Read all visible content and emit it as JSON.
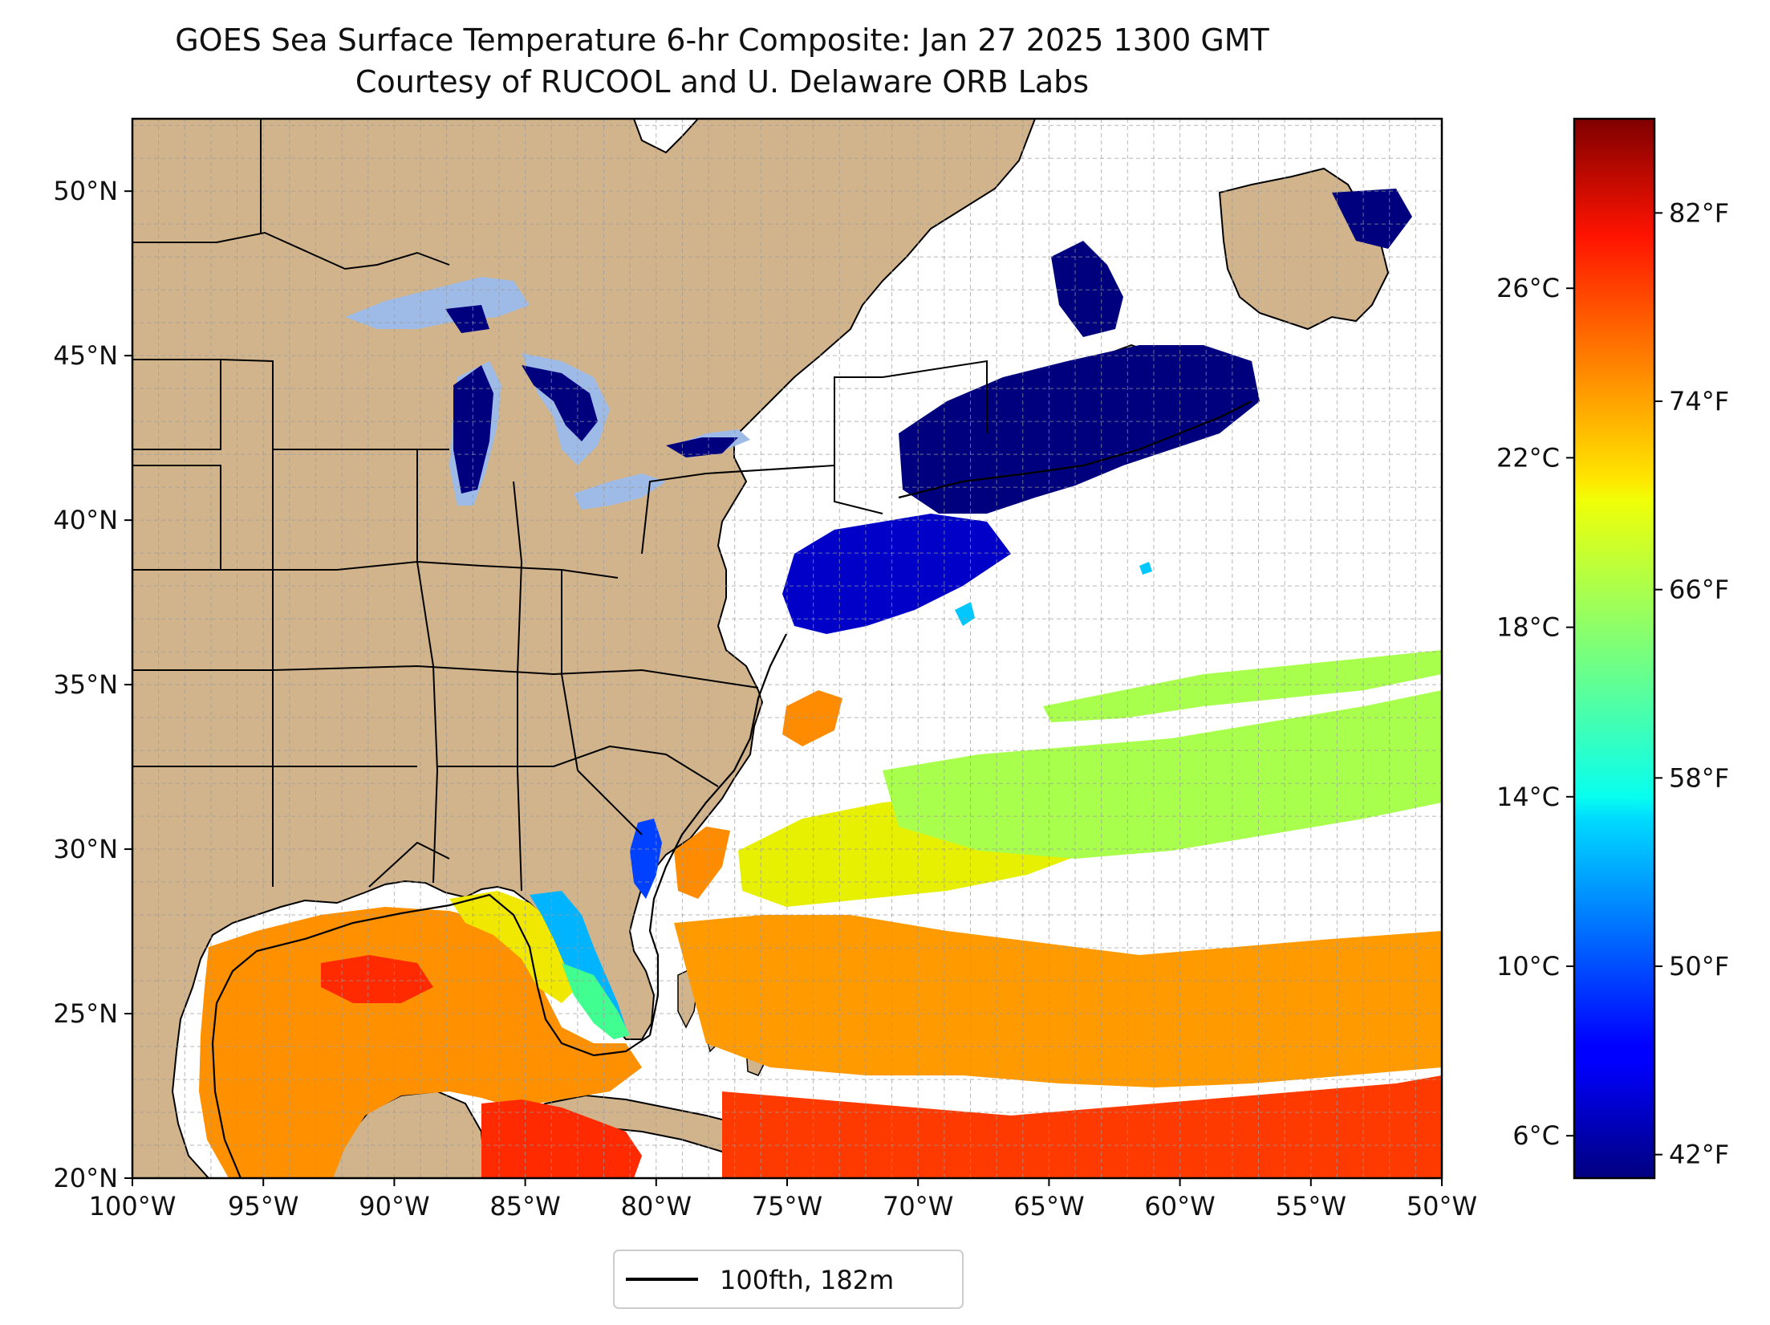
{
  "title": {
    "line1": "GOES Sea Surface Temperature 6-hr Composite: Jan 27 2025 1300 GMT",
    "line2": "Courtesy of RUCOOL and U. Delaware ORB Labs"
  },
  "map": {
    "lon_range": [
      -100,
      -50
    ],
    "lat_range": [
      20,
      52.2
    ],
    "x_ticks": [
      {
        "lon": -100,
        "label": "100°W"
      },
      {
        "lon": -95,
        "label": "95°W"
      },
      {
        "lon": -90,
        "label": "90°W"
      },
      {
        "lon": -85,
        "label": "85°W"
      },
      {
        "lon": -80,
        "label": "80°W"
      },
      {
        "lon": -75,
        "label": "75°W"
      },
      {
        "lon": -70,
        "label": "70°W"
      },
      {
        "lon": -65,
        "label": "65°W"
      },
      {
        "lon": -60,
        "label": "60°W"
      },
      {
        "lon": -55,
        "label": "55°W"
      },
      {
        "lon": -50,
        "label": "50°W"
      }
    ],
    "y_ticks": [
      {
        "lat": 20,
        "label": "20°N"
      },
      {
        "lat": 25,
        "label": "25°N"
      },
      {
        "lat": 30,
        "label": "30°N"
      },
      {
        "lat": 35,
        "label": "35°N"
      },
      {
        "lat": 40,
        "label": "40°N"
      },
      {
        "lat": 45,
        "label": "45°N"
      },
      {
        "lat": 50,
        "label": "50°N"
      }
    ],
    "grid_step_deg": 1,
    "grid": true,
    "colors": {
      "land": "#d2b48c",
      "lakes": "#9dbbe6",
      "ocean_no_data": "#ffffff",
      "boundaries": "#000000"
    }
  },
  "legend": {
    "label": "100fth, 182m",
    "placement": "below map"
  },
  "colorbar": {
    "colormap": "jet",
    "range_c": [
      5,
      30
    ],
    "celsius_ticks": [
      {
        "value": 6,
        "label": "6°C"
      },
      {
        "value": 10,
        "label": "10°C"
      },
      {
        "value": 14,
        "label": "14°C"
      },
      {
        "value": 18,
        "label": "18°C"
      },
      {
        "value": 22,
        "label": "22°C"
      },
      {
        "value": 26,
        "label": "26°C"
      }
    ],
    "fahrenheit_ticks": [
      {
        "value": 42,
        "label": "42°F"
      },
      {
        "value": 50,
        "label": "50°F"
      },
      {
        "value": 58,
        "label": "58°F"
      },
      {
        "value": 66,
        "label": "66°F"
      },
      {
        "value": 74,
        "label": "74°F"
      },
      {
        "value": 82,
        "label": "82°F"
      }
    ]
  }
}
